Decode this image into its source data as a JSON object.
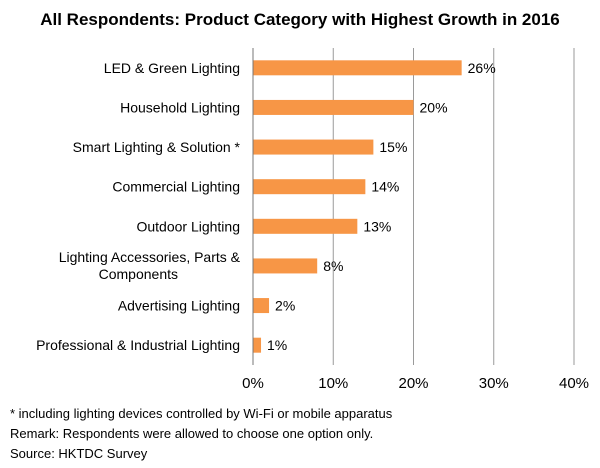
{
  "chart_data": {
    "type": "bar",
    "orientation": "horizontal",
    "title": "All Respondents: Product Category with Highest Growth in 2016",
    "categories": [
      "LED & Green Lighting",
      "Household Lighting",
      "Smart Lighting & Solution *",
      "Commercial Lighting",
      "Outdoor Lighting",
      "Lighting Accessories, Parts & Components",
      "Advertising Lighting",
      "Professional & Industrial Lighting"
    ],
    "values": [
      26,
      20,
      15,
      14,
      13,
      8,
      2,
      1
    ],
    "value_labels": [
      "26%",
      "20%",
      "15%",
      "14%",
      "13%",
      "8%",
      "2%",
      "1%"
    ],
    "xlim": [
      0,
      40
    ],
    "xticks": [
      0,
      10,
      20,
      30,
      40
    ],
    "xtick_labels": [
      "0%",
      "10%",
      "20%",
      "30%",
      "40%"
    ],
    "xlabel": "",
    "ylabel": "",
    "grid": true,
    "bar_color": "#f79646"
  },
  "notes": {
    "footnote": "* including lighting devices controlled by Wi-Fi or mobile apparatus",
    "remark": "Remark: Respondents were allowed to choose one option only.",
    "source": "Source: HKTDC Survey"
  }
}
